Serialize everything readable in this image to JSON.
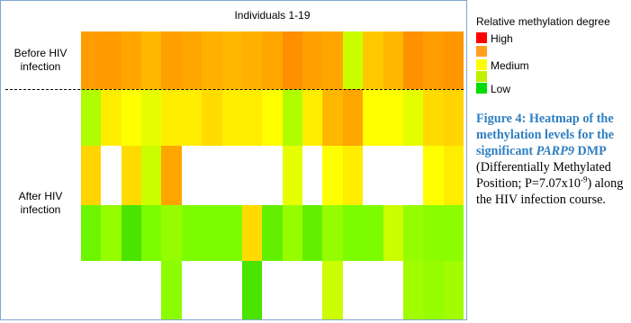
{
  "chart_data": {
    "type": "heatmap",
    "title": "Individuals 1-19",
    "row_labels": [
      "Before HIV infection",
      "After HIV infection"
    ],
    "columns": 19,
    "rows": [
      [
        0.8,
        0.82,
        0.75,
        0.7,
        0.78,
        0.75,
        0.72,
        0.7,
        0.72,
        0.75,
        0.9,
        0.78,
        0.75,
        0.4,
        0.65,
        0.7,
        0.88,
        0.8,
        0.85
      ],
      [
        0.35,
        0.55,
        0.5,
        0.45,
        0.55,
        0.55,
        0.6,
        0.55,
        0.55,
        0.5,
        0.35,
        0.55,
        0.7,
        0.75,
        0.5,
        0.5,
        0.45,
        0.6,
        0.62
      ],
      [
        0.62,
        null,
        0.6,
        0.4,
        0.75,
        null,
        null,
        null,
        null,
        null,
        0.45,
        null,
        0.5,
        0.55,
        null,
        null,
        null,
        0.5,
        0.55
      ],
      [
        0.22,
        0.3,
        0.15,
        0.25,
        0.3,
        0.25,
        0.25,
        0.25,
        0.6,
        0.2,
        0.3,
        0.2,
        0.3,
        0.25,
        0.25,
        0.4,
        0.3,
        0.28,
        0.28
      ],
      [
        null,
        null,
        null,
        null,
        0.28,
        null,
        null,
        null,
        0.15,
        null,
        null,
        null,
        0.4,
        null,
        null,
        null,
        0.32,
        0.3,
        0.32
      ]
    ],
    "color_scale": [
      "#00c000",
      "#7cfc00",
      "#ffff00",
      "#ffa500",
      "#ff7f00"
    ],
    "separator_after_row": 0,
    "legend": {
      "title": "Relative methylation degree",
      "items": [
        {
          "label": "High",
          "color": "#ff0000"
        },
        {
          "label": "",
          "color": "#ffa020"
        },
        {
          "label": "Medium",
          "color": "#ffff00"
        },
        {
          "label": "",
          "color": "#bff000"
        },
        {
          "label": "Low",
          "color": "#00dd00"
        }
      ]
    }
  },
  "caption": {
    "bold": "Figure 4: Heatmap of the methylation levels for the significant",
    "gene": "PARP9",
    "bold_tail": "DMP",
    "text": "(Differentially Methylated Position; P=7.07x10",
    "exponent": "-9",
    "text_tail": ") along the HIV infection course."
  }
}
